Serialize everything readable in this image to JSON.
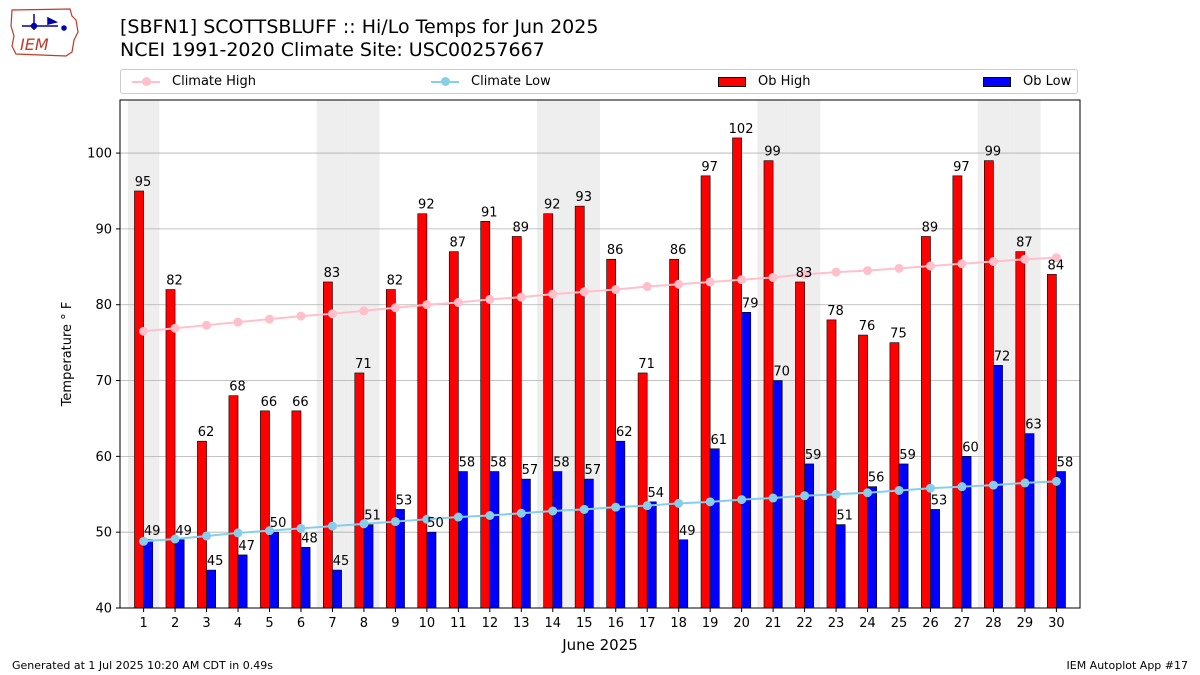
{
  "header": {
    "title_line1": "[SBFN1] SCOTTSBLUFF :: Hi/Lo Temps for Jun 2025",
    "title_line2": "NCEI 1991-2020 Climate Site: USC00257667",
    "logo_text": "IEM"
  },
  "footer": {
    "generated": "Generated at 1 Jul 2025 10:20 AM CDT in 0.49s",
    "app": "IEM Autoplot App #17"
  },
  "colors": {
    "ob_high": "#ff0000",
    "ob_low": "#0000ff",
    "climate_high": "#ffc0cb",
    "climate_low": "#87ceeb",
    "weekend_band": "#eeeeee"
  },
  "chart_data": {
    "type": "bar",
    "xlabel": "June 2025",
    "ylabel": "Temperature ° F",
    "ylim": [
      40,
      107
    ],
    "yticks": [
      40,
      50,
      60,
      70,
      80,
      90,
      100
    ],
    "categories": [
      "1",
      "2",
      "3",
      "4",
      "5",
      "6",
      "7",
      "8",
      "9",
      "10",
      "11",
      "12",
      "13",
      "14",
      "15",
      "16",
      "17",
      "18",
      "19",
      "20",
      "21",
      "22",
      "23",
      "24",
      "25",
      "26",
      "27",
      "28",
      "29",
      "30"
    ],
    "grid": true,
    "legend_position": "top",
    "weekend_days": [
      1,
      7,
      8,
      14,
      15,
      21,
      22,
      28,
      29
    ],
    "series": [
      {
        "name": "Ob High",
        "kind": "bar",
        "values": [
          95,
          82,
          62,
          68,
          66,
          66,
          83,
          71,
          82,
          92,
          87,
          91,
          89,
          92,
          93,
          86,
          71,
          86,
          97,
          102,
          99,
          83,
          78,
          76,
          75,
          89,
          97,
          99,
          87,
          84
        ]
      },
      {
        "name": "Ob Low",
        "kind": "bar",
        "values": [
          49,
          49,
          45,
          47,
          50,
          48,
          45,
          51,
          53,
          50,
          58,
          58,
          57,
          58,
          57,
          62,
          54,
          49,
          61,
          79,
          70,
          59,
          51,
          56,
          59,
          53,
          60,
          72,
          63,
          58
        ]
      },
      {
        "name": "Climate High",
        "kind": "line",
        "values": [
          76.5,
          76.9,
          77.3,
          77.7,
          78.1,
          78.5,
          78.8,
          79.2,
          79.6,
          80.0,
          80.3,
          80.7,
          81.0,
          81.4,
          81.7,
          82.0,
          82.4,
          82.7,
          83.0,
          83.3,
          83.6,
          84.0,
          84.3,
          84.5,
          84.8,
          85.1,
          85.4,
          85.7,
          86.0,
          86.2
        ]
      },
      {
        "name": "Climate Low",
        "kind": "line",
        "values": [
          48.8,
          49.1,
          49.5,
          49.9,
          50.2,
          50.5,
          50.8,
          51.1,
          51.4,
          51.7,
          52.0,
          52.2,
          52.5,
          52.8,
          53.0,
          53.3,
          53.5,
          53.8,
          54.0,
          54.3,
          54.5,
          54.8,
          55.0,
          55.2,
          55.5,
          55.8,
          56.0,
          56.2,
          56.5,
          56.7
        ]
      }
    ]
  }
}
